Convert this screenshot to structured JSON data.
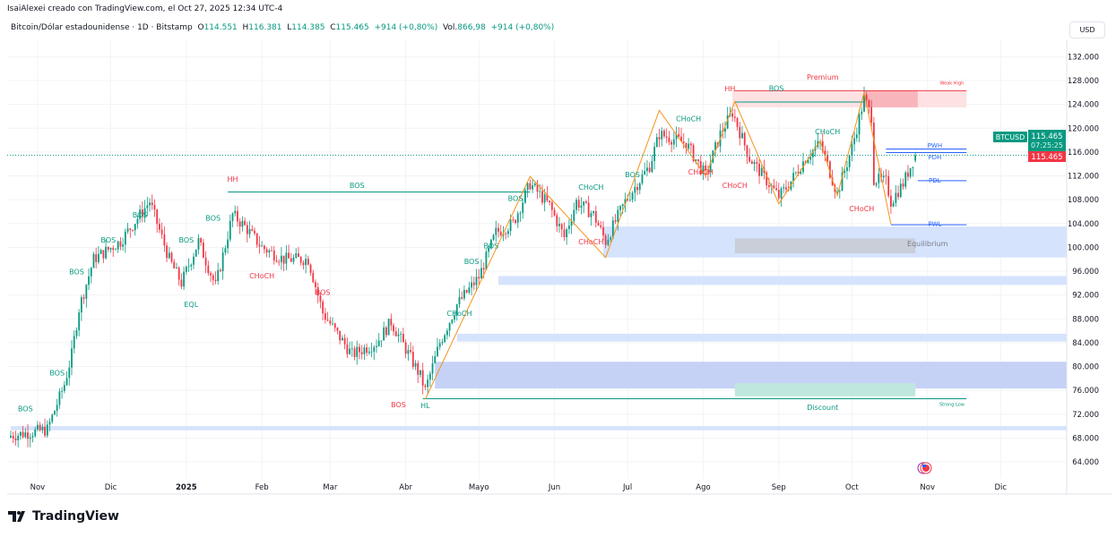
{
  "header": {
    "credit": "IsaiAlexei creado con TradingView.com, el Oct 27, 2025 12:34 UTC-4",
    "symbol": "Bitcoin/Dólar estadounidense · 1D · Bitstamp",
    "o_label": "O",
    "o": "114.551",
    "h_label": "H",
    "h": "116.381",
    "l_label": "L",
    "l": "114.385",
    "c_label": "C",
    "c": "115.465",
    "change": "+914 (+0,80%)",
    "vol_label": "Vol.",
    "vol": "866,98",
    "vol_change": "+914 (+0,80%)"
  },
  "currency": "USD",
  "price_tag": {
    "symbol": "BTCUSD",
    "price": "115.465",
    "countdown": "07:25:25",
    "last": "115.465"
  },
  "brand": "TradingView",
  "colors": {
    "up": "#089981",
    "down": "#f23645",
    "zigzag": "#f7931a",
    "zone": "#cfe0fb",
    "premium": "#fcd9dc",
    "discount": "#bfe7de"
  },
  "chart_data": {
    "type": "candlestick",
    "symbol": "BTCUSD",
    "timeframe": "1D",
    "ylim": [
      62000,
      134000
    ],
    "yticks": [
      "132.000",
      "128.000",
      "124.000",
      "120.000",
      "116.000",
      "112.000",
      "108.000",
      "104.000",
      "100.000",
      "96.000",
      "92.000",
      "88.000",
      "84.000",
      "80.000",
      "76.000",
      "72.000",
      "68.000",
      "64.000"
    ],
    "ytick_values": [
      132000,
      128000,
      124000,
      120000,
      116000,
      112000,
      108000,
      104000,
      100000,
      96000,
      92000,
      88000,
      84000,
      80000,
      76000,
      72000,
      68000,
      64000
    ],
    "xticks": [
      {
        "label": "Nov",
        "date": "2024-11-01"
      },
      {
        "label": "Dic",
        "date": "2024-12-01"
      },
      {
        "label": "2025",
        "date": "2025-01-01"
      },
      {
        "label": "Feb",
        "date": "2025-02-01"
      },
      {
        "label": "Mar",
        "date": "2025-03-01"
      },
      {
        "label": "Abr",
        "date": "2025-04-01"
      },
      {
        "label": "Mayo",
        "date": "2025-05-01"
      },
      {
        "label": "Jun",
        "date": "2025-06-01"
      },
      {
        "label": "Jul",
        "date": "2025-07-01"
      },
      {
        "label": "Ago",
        "date": "2025-08-01"
      },
      {
        "label": "Sep",
        "date": "2025-09-01"
      },
      {
        "label": "Oct",
        "date": "2025-10-01"
      },
      {
        "label": "Nov",
        "date": "2025-11-01"
      },
      {
        "label": "Dic",
        "date": "2025-12-01"
      }
    ],
    "close_path": [
      [
        "2024-10-21",
        68400
      ],
      [
        "2024-11-05",
        69400
      ],
      [
        "2024-11-12",
        77000
      ],
      [
        "2024-11-15",
        82000
      ],
      [
        "2024-11-18",
        89700
      ],
      [
        "2024-11-24",
        98000
      ],
      [
        "2024-12-05",
        101000
      ],
      [
        "2024-12-17",
        107700
      ],
      [
        "2024-12-25",
        98000
      ],
      [
        "2024-12-30",
        94000
      ],
      [
        "2025-01-06",
        101000
      ],
      [
        "2025-01-13",
        93500
      ],
      [
        "2025-01-20",
        105500
      ],
      [
        "2025-01-25",
        103500
      ],
      [
        "2025-02-01",
        100000
      ],
      [
        "2025-02-10",
        98000
      ],
      [
        "2025-02-20",
        98000
      ],
      [
        "2025-02-26",
        89000
      ],
      [
        "2025-03-03",
        86000
      ],
      [
        "2025-03-10",
        82000
      ],
      [
        "2025-03-20",
        84000
      ],
      [
        "2025-03-26",
        87500
      ],
      [
        "2025-04-07",
        78400
      ],
      [
        "2025-04-09",
        76000
      ],
      [
        "2025-04-15",
        84000
      ],
      [
        "2025-04-22",
        90400
      ],
      [
        "2025-05-01",
        95000
      ],
      [
        "2025-05-08",
        102500
      ],
      [
        "2025-05-15",
        104000
      ],
      [
        "2025-05-22",
        110700
      ],
      [
        "2025-05-30",
        107000
      ],
      [
        "2025-06-05",
        101700
      ],
      [
        "2025-06-10",
        107700
      ],
      [
        "2025-06-17",
        105500
      ],
      [
        "2025-06-22",
        101000
      ],
      [
        "2025-06-30",
        107700
      ],
      [
        "2025-07-10",
        113700
      ],
      [
        "2025-07-14",
        119000
      ],
      [
        "2025-07-25",
        117500
      ],
      [
        "2025-08-02",
        112000
      ],
      [
        "2025-08-08",
        119000
      ],
      [
        "2025-08-13",
        122700
      ],
      [
        "2025-08-20",
        115000
      ],
      [
        "2025-09-01",
        108500
      ],
      [
        "2025-09-05",
        110500
      ],
      [
        "2025-09-12",
        115000
      ],
      [
        "2025-09-18",
        117500
      ],
      [
        "2025-09-25",
        109000
      ],
      [
        "2025-10-01",
        116700
      ],
      [
        "2025-10-06",
        125000
      ],
      [
        "2025-10-09",
        122000
      ],
      [
        "2025-10-10",
        111500
      ],
      [
        "2025-10-15",
        111000
      ],
      [
        "2025-10-17",
        107700
      ],
      [
        "2025-10-22",
        110700
      ],
      [
        "2025-10-27",
        115465
      ]
    ],
    "zones": [
      {
        "name": "premium-zone",
        "from": "2025-08-13",
        "to": "2025-11-17",
        "low": 123500,
        "high": 126300,
        "color": "#fde1e3"
      },
      {
        "name": "premium-zone-recent",
        "from": "2025-10-06",
        "to": "2025-10-28",
        "low": 123500,
        "high": 126300,
        "color": "#f9b5bc"
      },
      {
        "name": "demand-zone-1",
        "from": "2025-06-21",
        "to": "2026-01-01",
        "low": 98300,
        "high": 103500,
        "color": "#d6e3fd"
      },
      {
        "name": "equilibrium-zone",
        "from": "2025-08-14",
        "to": "2025-10-27",
        "low": 99000,
        "high": 101500,
        "color": "#c9ced8"
      },
      {
        "name": "demand-zone-2",
        "from": "2025-05-09",
        "to": "2026-01-01",
        "low": 93700,
        "high": 95200,
        "color": "#d6e3fd"
      },
      {
        "name": "demand-zone-3",
        "from": "2025-04-22",
        "to": "2026-01-01",
        "low": 84200,
        "high": 85500,
        "color": "#d6e3fd"
      },
      {
        "name": "demand-zone-4",
        "from": "2025-04-13",
        "to": "2026-01-01",
        "low": 76300,
        "high": 80800,
        "color": "#c5d2f6"
      },
      {
        "name": "discount-zone",
        "from": "2025-08-14",
        "to": "2025-10-27",
        "low": 75000,
        "high": 77200,
        "color": "#bfe7de"
      },
      {
        "name": "demand-zone-5",
        "from": "2024-10-21",
        "to": "2026-01-01",
        "low": 69300,
        "high": 70000,
        "color": "#d6e3fd"
      }
    ],
    "levels": [
      {
        "name": "strong-low-line",
        "from": "2025-04-08",
        "to": "2025-11-17",
        "price": 74600,
        "color": "#089981"
      },
      {
        "name": "weak-high-line",
        "from": "2025-08-14",
        "to": "2025-11-17",
        "price": 126300,
        "color": "#f23645"
      },
      {
        "name": "bos-line-hh",
        "from": "2025-01-18",
        "to": "2025-05-22",
        "price": 109300,
        "color": "#089981"
      },
      {
        "name": "pwh-line",
        "from": "2025-10-15",
        "to": "2025-11-17",
        "price": 116500,
        "color": "#2962ff"
      },
      {
        "name": "pdh-line",
        "from": "2025-10-15",
        "to": "2025-11-17",
        "price": 115900,
        "color": "#2962ff"
      },
      {
        "name": "pdl-line",
        "from": "2025-10-28",
        "to": "2025-11-17",
        "price": 111200,
        "color": "#2962ff"
      },
      {
        "name": "pwl-line",
        "from": "2025-10-17",
        "to": "2025-11-17",
        "price": 103800,
        "color": "#2962ff"
      },
      {
        "name": "bos-line-aug",
        "from": "2025-08-14",
        "to": "2025-10-06",
        "price": 124400,
        "color": "#089981"
      }
    ],
    "zigzag": [
      [
        "2025-04-09",
        74500
      ],
      [
        "2025-05-22",
        111900
      ],
      [
        "2025-06-22",
        98300
      ],
      [
        "2025-07-14",
        123000
      ],
      [
        "2025-08-02",
        112000
      ],
      [
        "2025-08-14",
        124500
      ],
      [
        "2025-09-01",
        107300
      ],
      [
        "2025-09-18",
        117900
      ],
      [
        "2025-09-25",
        108700
      ],
      [
        "2025-10-06",
        126000
      ],
      [
        "2025-10-17",
        103900
      ]
    ],
    "annotations": [
      {
        "text": "BOS",
        "date": "2024-10-27",
        "price": 72500,
        "color": "#089981"
      },
      {
        "text": "BOS",
        "date": "2024-11-09",
        "price": 78500,
        "color": "#089981"
      },
      {
        "text": "BOS",
        "date": "2024-11-17",
        "price": 95500,
        "color": "#089981"
      },
      {
        "text": "BOS",
        "date": "2024-11-30",
        "price": 100800,
        "color": "#089981"
      },
      {
        "text": "BOS",
        "date": "2024-12-13",
        "price": 105000,
        "color": "#089981"
      },
      {
        "text": "BOS",
        "date": "2025-01-01",
        "price": 100800,
        "color": "#089981"
      },
      {
        "text": "BOS",
        "date": "2025-01-12",
        "price": 104500,
        "color": "#089981"
      },
      {
        "text": "EQL",
        "date": "2025-01-03",
        "price": 90000,
        "color": "#089981"
      },
      {
        "text": "HH",
        "date": "2025-01-20",
        "price": 111000,
        "color": "#f23645"
      },
      {
        "text": "BOS",
        "date": "2025-03-12",
        "price": 110000,
        "color": "#089981"
      },
      {
        "text": "CHoCH",
        "date": "2025-02-01",
        "price": 94800,
        "color": "#f23645"
      },
      {
        "text": "BOS",
        "date": "2025-02-26",
        "price": 92000,
        "color": "#f23645"
      },
      {
        "text": "BOS",
        "date": "2025-03-29",
        "price": 73200,
        "color": "#f23645"
      },
      {
        "text": "HL",
        "date": "2025-04-09",
        "price": 73000,
        "color": "#089981"
      },
      {
        "text": "CHoCH",
        "date": "2025-04-23",
        "price": 88500,
        "color": "#089981"
      },
      {
        "text": "BOS",
        "date": "2025-04-28",
        "price": 97200,
        "color": "#089981"
      },
      {
        "text": "BOS",
        "date": "2025-05-06",
        "price": 99800,
        "color": "#089981"
      },
      {
        "text": "BOS",
        "date": "2025-05-16",
        "price": 107800,
        "color": "#089981"
      },
      {
        "text": "CHoCH",
        "date": "2025-06-16",
        "price": 109700,
        "color": "#089981"
      },
      {
        "text": "CHoCH",
        "date": "2025-06-16",
        "price": 100500,
        "color": "#f23645"
      },
      {
        "text": "BOS",
        "date": "2025-07-03",
        "price": 111800,
        "color": "#089981"
      },
      {
        "text": "CHoCH",
        "date": "2025-07-26",
        "price": 121200,
        "color": "#089981"
      },
      {
        "text": "HH",
        "date": "2025-08-12",
        "price": 126200,
        "color": "#f23645"
      },
      {
        "text": "BOS",
        "date": "2025-08-31",
        "price": 126300,
        "color": "#089981"
      },
      {
        "text": "Premium",
        "date": "2025-09-19",
        "price": 127700,
        "color": "#f23645"
      },
      {
        "text": "CHoCH",
        "date": "2025-07-31",
        "price": 112200,
        "color": "#f23645"
      },
      {
        "text": "CHoCH",
        "date": "2025-08-14",
        "price": 110000,
        "color": "#f23645"
      },
      {
        "text": "CHoCH",
        "date": "2025-09-21",
        "price": 119000,
        "color": "#089981"
      },
      {
        "text": "CHoCH",
        "date": "2025-10-05",
        "price": 106100,
        "color": "#f23645"
      },
      {
        "text": "Equilibrium",
        "date": "2025-11-01",
        "price": 100200,
        "color": "#787b86"
      },
      {
        "text": "Discount",
        "date": "2025-09-19",
        "price": 72700,
        "color": "#089981"
      },
      {
        "text": "Weak High",
        "date": "2025-11-11",
        "price": 127300,
        "color": "#f23645"
      },
      {
        "text": "Strong Low",
        "date": "2025-11-11",
        "price": 73400,
        "color": "#089981"
      },
      {
        "text": "PWH",
        "date": "2025-11-04",
        "price": 116300,
        "color": "#2962ff"
      },
      {
        "text": "PDH",
        "date": "2025-11-04",
        "price": 115500,
        "color": "#2962ff"
      },
      {
        "text": "PDL",
        "date": "2025-11-04",
        "price": 110900,
        "color": "#2962ff"
      },
      {
        "text": "PWL",
        "date": "2025-11-04",
        "price": 103600,
        "color": "#2962ff"
      }
    ]
  }
}
